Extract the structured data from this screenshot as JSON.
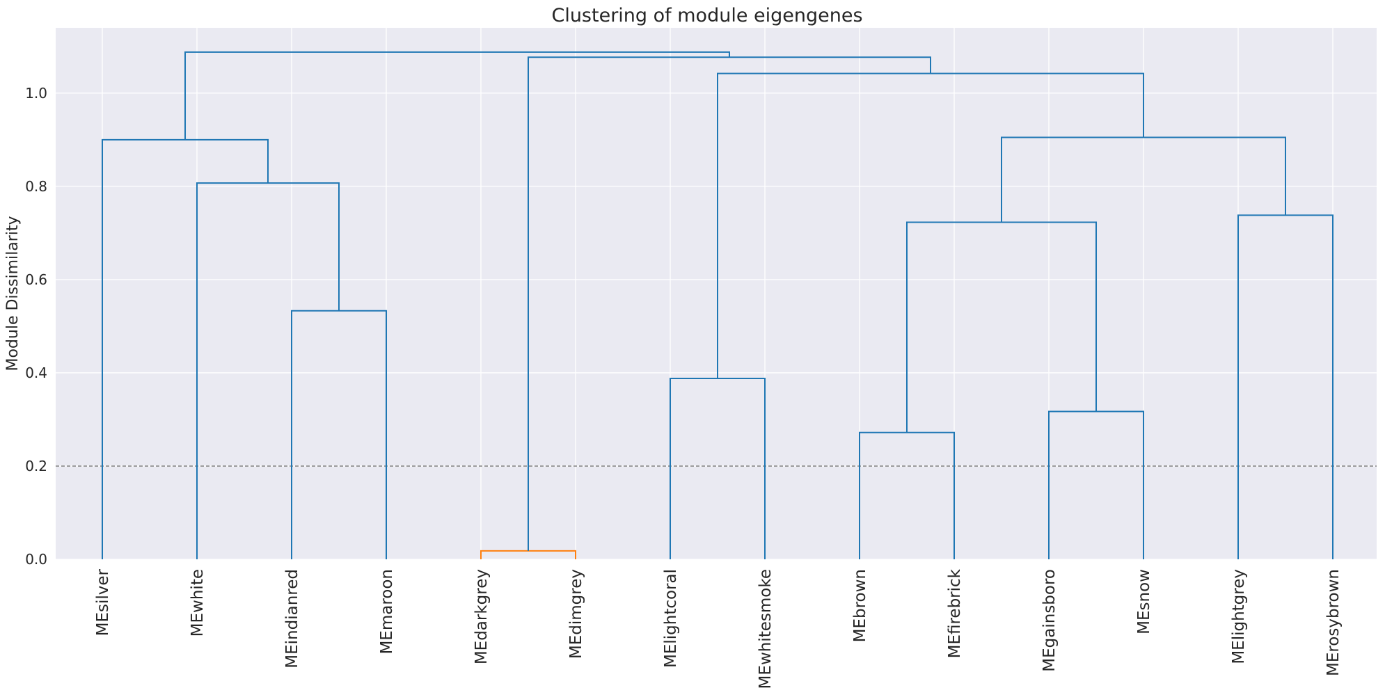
{
  "chart_data": {
    "type": "dendrogram",
    "title": "Clustering of module eigengenes",
    "xlabel": "",
    "ylabel": "Module Dissimilarity",
    "ylim": [
      0,
      1.14
    ],
    "yticks": [
      0.0,
      0.2,
      0.4,
      0.6,
      0.8,
      1.0
    ],
    "ytick_labels": [
      "0.0",
      "0.2",
      "0.4",
      "0.6",
      "0.8",
      "1.0"
    ],
    "grid": true,
    "background": "#eaeaf2",
    "threshold": 0.2,
    "threshold_color": "#808080",
    "leaves": [
      "MEsilver",
      "MEwhite",
      "MEindianred",
      "MEmaroon",
      "MEdarkgrey",
      "MEdimgrey",
      "MElightcoral",
      "MEwhitesmoke",
      "MEbrown",
      "MEfirebrick",
      "MEgainsboro",
      "MEsnow",
      "MElightgrey",
      "MErosybrown"
    ],
    "merges": [
      {
        "left": "MEdarkgrey",
        "right": "MEdimgrey",
        "height": 0.018,
        "color": "#ff7f0e"
      },
      {
        "left": "MEbrown",
        "right": "MEfirebrick",
        "height": 0.272,
        "color": "#1f77b4"
      },
      {
        "left": "MEgainsboro",
        "right": "MEsnow",
        "height": 0.317,
        "color": "#1f77b4"
      },
      {
        "left": "MElightcoral",
        "right": "MEwhitesmoke",
        "height": 0.388,
        "color": "#1f77b4"
      },
      {
        "left": "MEindianred",
        "right": "MEmaroon",
        "height": 0.533,
        "color": "#1f77b4"
      },
      {
        "left": "C1",
        "right": "C2",
        "height": 0.723,
        "color": "#1f77b4"
      },
      {
        "left": "MElightgrey",
        "right": "MErosybrown",
        "height": 0.738,
        "color": "#1f77b4"
      },
      {
        "left": "MEwhite",
        "right": "C4",
        "height": 0.807,
        "color": "#1f77b4"
      },
      {
        "left": "MEsilver",
        "right": "C7",
        "height": 0.9,
        "color": "#1f77b4"
      },
      {
        "left": "C5",
        "right": "C6",
        "height": 0.905,
        "color": "#1f77b4"
      },
      {
        "left": "C3",
        "right": "C9",
        "height": 1.042,
        "color": "#1f77b4"
      },
      {
        "left": "C0",
        "right": "C10",
        "height": 1.077,
        "color": "#1f77b4"
      },
      {
        "left": "C8",
        "right": "C11",
        "height": 1.088,
        "color": "#1f77b4"
      }
    ]
  }
}
